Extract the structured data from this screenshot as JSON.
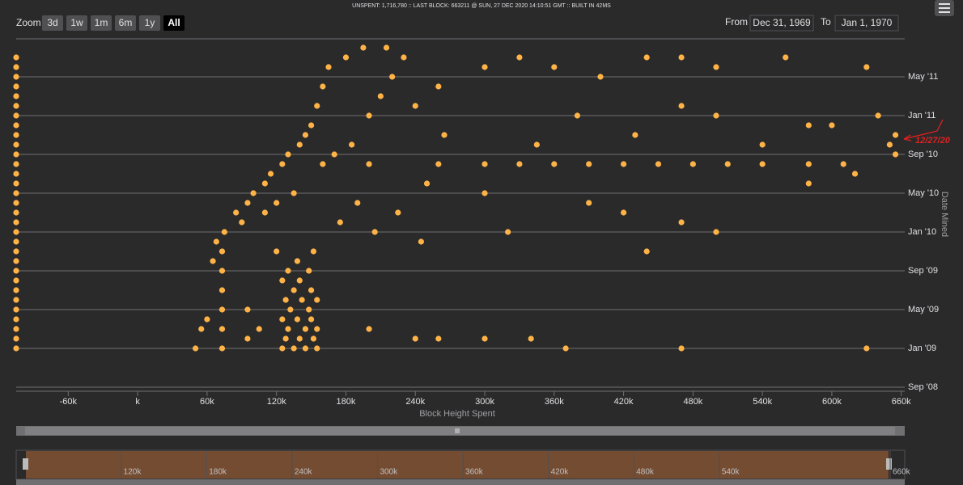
{
  "header": {
    "status": "UNSPENT: 1,716,780 :: LAST BLOCK: 663211 @ SUN, 27 DEC 2020 14:10:51 GMT :: BUILT IN 42MS"
  },
  "zoom": {
    "label": "Zoom",
    "buttons": [
      "3d",
      "1w",
      "1m",
      "6m",
      "1y",
      "All"
    ],
    "selected": "All"
  },
  "range": {
    "from_label": "From",
    "from": "Dec 31, 1969",
    "to_label": "To",
    "to": "Jan 1, 1970"
  },
  "chart_data": {
    "type": "scatter",
    "x_label": "Block Height Spent",
    "y_label": "Date Mined",
    "color": "#ffb347",
    "grid": true,
    "annotation": "12/27/20",
    "xlim": [
      -105000,
      663000
    ],
    "xticks": [
      {
        "value": -60000,
        "label": "-60k"
      },
      {
        "value": 0,
        "label": "k"
      },
      {
        "value": 60000,
        "label": "60k"
      },
      {
        "value": 120000,
        "label": "120k"
      },
      {
        "value": 180000,
        "label": "180k"
      },
      {
        "value": 240000,
        "label": "240k"
      },
      {
        "value": 300000,
        "label": "300k"
      },
      {
        "value": 360000,
        "label": "360k"
      },
      {
        "value": 420000,
        "label": "420k"
      },
      {
        "value": 480000,
        "label": "480k"
      },
      {
        "value": 540000,
        "label": "540k"
      },
      {
        "value": 600000,
        "label": "600k"
      },
      {
        "value": 660000,
        "label": "660k"
      }
    ],
    "ylim": [
      "2008-09",
      "2011-09"
    ],
    "yticks": [
      {
        "value": "2008-09",
        "label": "Sep '08"
      },
      {
        "value": "2009-01",
        "label": "Jan '09"
      },
      {
        "value": "2009-05",
        "label": "May '09"
      },
      {
        "value": "2009-09",
        "label": "Sep '09"
      },
      {
        "value": "2010-01",
        "label": "Jan '10"
      },
      {
        "value": "2010-05",
        "label": "May '10"
      },
      {
        "value": "2010-09",
        "label": "Sep '10"
      },
      {
        "value": "2011-01",
        "label": "Jan '11"
      },
      {
        "value": "2011-05",
        "label": "May '11"
      }
    ],
    "x": [
      -105000,
      -105000,
      -105000,
      -105000,
      -105000,
      -105000,
      -105000,
      -105000,
      -105000,
      -105000,
      -105000,
      -105000,
      -105000,
      -105000,
      -105000,
      -105000,
      -105000,
      -105000,
      -105000,
      -105000,
      -105000,
      -105000,
      -105000,
      -105000,
      -105000,
      -105000,
      -105000,
      -105000,
      -105000,
      -105000,
      -105000,
      125000,
      135000,
      145000,
      155000,
      128000,
      140000,
      152000,
      130000,
      145000,
      155000,
      125000,
      138000,
      150000,
      132000,
      148000,
      128000,
      142000,
      155000,
      135000,
      150000,
      125000,
      140000,
      130000,
      148000,
      138000,
      120000,
      152000,
      65000,
      68000,
      75000,
      85000,
      95000,
      100000,
      110000,
      115000,
      125000,
      130000,
      140000,
      145000,
      150000,
      155000,
      160000,
      165000,
      180000,
      195000,
      215000,
      230000,
      110000,
      120000,
      90000,
      135000,
      160000,
      170000,
      185000,
      200000,
      210000,
      220000,
      240000,
      260000,
      265000,
      250000,
      190000,
      175000,
      205000,
      245000,
      225000,
      73000,
      73000,
      73000,
      73000,
      73000,
      73000,
      95000,
      95000,
      105000,
      55000,
      50000,
      60000,
      200000,
      260000,
      300000,
      330000,
      360000,
      390000,
      420000,
      450000,
      480000,
      510000,
      540000,
      580000,
      610000,
      300000,
      330000,
      360000,
      400000,
      440000,
      470000,
      500000,
      560000,
      630000,
      380000,
      430000,
      470000,
      500000,
      600000,
      640000,
      655000,
      650000,
      655000,
      345000,
      420000,
      470000,
      500000,
      390000,
      320000,
      440000,
      300000,
      580000,
      620000,
      200000,
      240000,
      260000,
      300000,
      340000,
      370000,
      470000,
      630000,
      580000,
      540000
    ],
    "y": [
      "2009-01",
      "2009-02",
      "2009-03",
      "2009-04",
      "2009-05",
      "2009-06",
      "2009-07",
      "2009-08",
      "2009-09",
      "2009-10",
      "2009-11",
      "2009-12",
      "2010-01",
      "2010-02",
      "2010-03",
      "2010-04",
      "2010-05",
      "2010-06",
      "2010-07",
      "2010-08",
      "2010-09",
      "2010-10",
      "2010-11",
      "2010-12",
      "2011-01",
      "2011-02",
      "2011-03",
      "2011-04",
      "2011-05",
      "2011-06",
      "2011-07",
      "2009-01",
      "2009-01",
      "2009-01",
      "2009-01",
      "2009-02",
      "2009-02",
      "2009-02",
      "2009-03",
      "2009-03",
      "2009-03",
      "2009-04",
      "2009-04",
      "2009-04",
      "2009-05",
      "2009-05",
      "2009-06",
      "2009-06",
      "2009-06",
      "2009-07",
      "2009-07",
      "2009-08",
      "2009-08",
      "2009-09",
      "2009-09",
      "2009-10",
      "2009-11",
      "2009-11",
      "2009-10",
      "2009-12",
      "2010-01",
      "2010-03",
      "2010-04",
      "2010-05",
      "2010-06",
      "2010-07",
      "2010-08",
      "2010-09",
      "2010-10",
      "2010-11",
      "2010-12",
      "2011-02",
      "2011-04",
      "2011-06",
      "2011-07",
      "2011-08",
      "2011-08",
      "2011-07",
      "2010-03",
      "2010-04",
      "2010-02",
      "2010-05",
      "2010-08",
      "2010-09",
      "2010-10",
      "2011-01",
      "2011-03",
      "2011-05",
      "2011-02",
      "2011-04",
      "2010-11",
      "2010-06",
      "2010-04",
      "2010-02",
      "2010-01",
      "2009-12",
      "2010-03",
      "2009-01",
      "2009-03",
      "2009-05",
      "2009-07",
      "2009-09",
      "2009-11",
      "2009-02",
      "2009-05",
      "2009-03",
      "2009-03",
      "2009-01",
      "2009-04",
      "2010-08",
      "2010-08",
      "2010-08",
      "2010-08",
      "2010-08",
      "2010-08",
      "2010-08",
      "2010-08",
      "2010-08",
      "2010-08",
      "2010-08",
      "2010-08",
      "2010-08",
      "2011-06",
      "2011-07",
      "2011-06",
      "2011-05",
      "2011-07",
      "2011-07",
      "2011-06",
      "2011-07",
      "2011-06",
      "2011-01",
      "2010-11",
      "2011-02",
      "2011-01",
      "2010-12",
      "2011-01",
      "2010-11",
      "2010-10",
      "2010-09",
      "2010-10",
      "2010-03",
      "2010-02",
      "2010-01",
      "2010-04",
      "2010-01",
      "2009-11",
      "2010-05",
      "2010-06",
      "2010-07",
      "2009-03",
      "2009-02",
      "2009-02",
      "2009-02",
      "2009-02",
      "2009-01",
      "2009-01",
      "2009-01",
      "2010-12",
      "2010-10"
    ]
  },
  "navigator": {
    "xlim": [
      52000,
      660000
    ],
    "xticks": [
      {
        "value": 120000,
        "label": "120k"
      },
      {
        "value": 180000,
        "label": "180k"
      },
      {
        "value": 240000,
        "label": "240k"
      },
      {
        "value": 300000,
        "label": "300k"
      },
      {
        "value": 360000,
        "label": "360k"
      },
      {
        "value": 420000,
        "label": "420k"
      },
      {
        "value": 480000,
        "label": "480k"
      },
      {
        "value": 540000,
        "label": "540k"
      },
      {
        "value": 660000,
        "label": "660k"
      }
    ]
  }
}
